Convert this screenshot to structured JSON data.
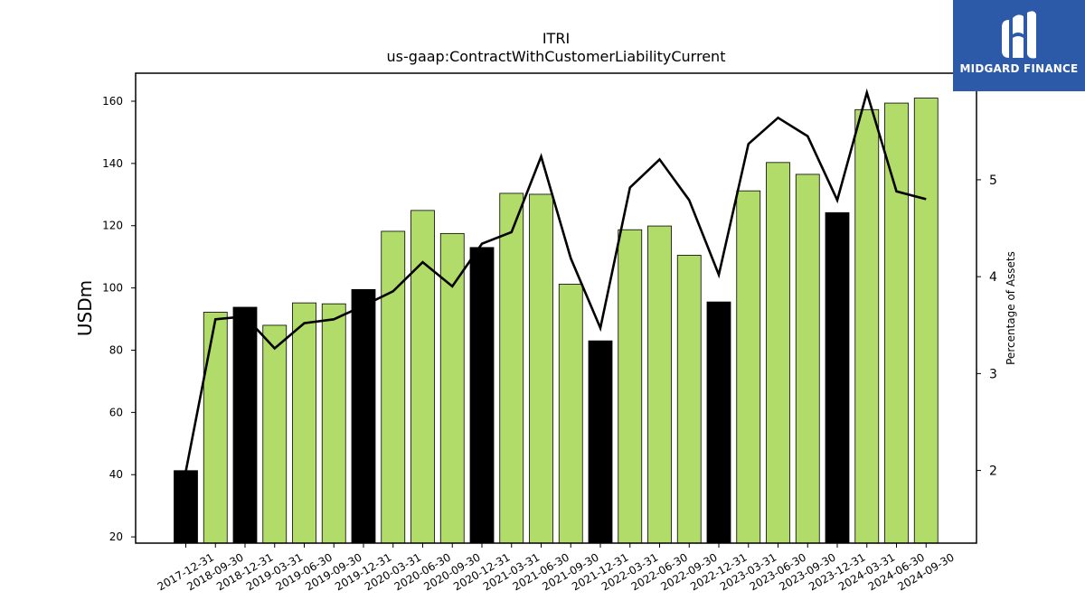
{
  "brand": {
    "name": "MIDGARD FINANCE",
    "background": "#2c5aa8",
    "icon": "midgard-logo-icon"
  },
  "chart_data": {
    "type": "bar",
    "title": "ITRI",
    "subtitle": "us-gaap:ContractWithCustomerLiabilityCurrent",
    "ylabel": "USDm",
    "y2label": "Percentage of Assets",
    "ylim": [
      18,
      169
    ],
    "y2lim": [
      1.25,
      6.1
    ],
    "yticks": [
      20,
      40,
      60,
      80,
      100,
      120,
      140,
      160
    ],
    "y2ticks": [
      2,
      3,
      4,
      5
    ],
    "grid": false,
    "legend": "none",
    "colors": {
      "annual_bar": "#000000",
      "quarterly_bar": "#b2dc69",
      "line": "#000000"
    },
    "categories": [
      "2017-12-31",
      "2018-09-30",
      "2018-12-31",
      "2019-03-31",
      "2019-06-30",
      "2019-09-30",
      "2019-12-31",
      "2020-03-31",
      "2020-06-30",
      "2020-09-30",
      "2020-12-31",
      "2021-03-31",
      "2021-06-30",
      "2021-09-30",
      "2021-12-31",
      "2022-03-31",
      "2022-06-30",
      "2022-09-30",
      "2022-12-31",
      "2023-03-31",
      "2023-06-30",
      "2023-09-30",
      "2023-12-31",
      "2024-03-31",
      "2024-06-30",
      "2024-09-30"
    ],
    "series": [
      {
        "type": "bar",
        "axis": "left",
        "values": [
          41.3,
          92.2,
          93.8,
          88.0,
          95.2,
          94.9,
          99.5,
          118.2,
          124.9,
          117.5,
          113.0,
          130.4,
          130.1,
          101.2,
          83.0,
          118.7,
          119.9,
          110.5,
          95.5,
          131.2,
          140.3,
          136.5,
          124.2,
          157.3,
          159.4,
          161.0
        ],
        "is_annual": [
          true,
          false,
          true,
          false,
          false,
          false,
          true,
          false,
          false,
          false,
          true,
          false,
          false,
          false,
          true,
          false,
          false,
          false,
          true,
          false,
          false,
          false,
          true,
          false,
          false,
          false
        ]
      },
      {
        "type": "line",
        "axis": "right",
        "values": [
          1.99,
          3.56,
          3.59,
          3.26,
          3.52,
          3.56,
          3.7,
          3.85,
          4.15,
          3.9,
          4.34,
          4.46,
          5.24,
          4.19,
          3.47,
          4.92,
          5.21,
          4.79,
          4.02,
          5.37,
          5.64,
          5.45,
          4.79,
          5.9,
          4.88,
          4.8
        ]
      }
    ]
  }
}
